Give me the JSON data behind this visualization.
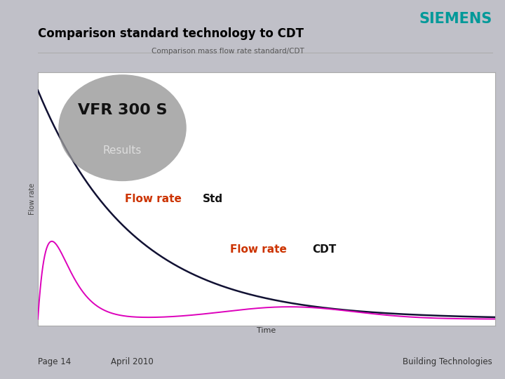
{
  "title_main": "Comparison standard technology to CDT",
  "title_sub": "Comparison mass flow rate standard/CDT",
  "siemens_text": "SIEMENS",
  "siemens_color": "#009999",
  "ylabel": "Flow rate",
  "xlabel": "Time",
  "bg_outer": "#c0c0c8",
  "bg_plot": "#ffffff",
  "title_main_color": "#000000",
  "vfr_text": "VFR 300 S",
  "results_text": "Results",
  "ellipse_color": "#999999",
  "std_curve_color": "#111133",
  "cdt_curve_color": "#dd00bb",
  "annotation_flowrate_color": "#cc3300",
  "annotation_std_color": "#111111",
  "footer_left": "Page 14",
  "footer_mid": "April 2010",
  "footer_right": "Building Technologies",
  "footer_color": "#333333"
}
